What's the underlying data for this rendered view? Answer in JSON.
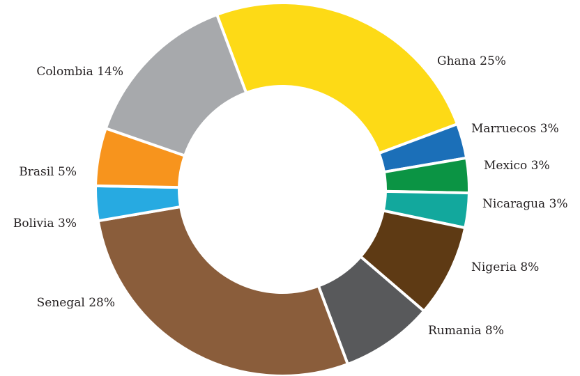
{
  "chart_data": {
    "type": "pie",
    "donut": true,
    "title": "",
    "slices": [
      {
        "name": "Ghana",
        "value": 25,
        "label": "Ghana 25%",
        "color": "#FDDA16"
      },
      {
        "name": "Marruecos",
        "value": 3,
        "label": "Marruecos 3%",
        "color": "#1B6FB8"
      },
      {
        "name": "Mexico",
        "value": 3,
        "label": "Mexico 3%",
        "color": "#0B9444"
      },
      {
        "name": "Nicaragua",
        "value": 3,
        "label": "Nicaragua 3%",
        "color": "#12A89D"
      },
      {
        "name": "Nigeria",
        "value": 8,
        "label": "Nigeria 8%",
        "color": "#5E3A14"
      },
      {
        "name": "Rumania",
        "value": 8,
        "label": "Rumania 8%",
        "color": "#58595B"
      },
      {
        "name": "Senegal",
        "value": 28,
        "label": "Senegal 28%",
        "color": "#8A5D3B"
      },
      {
        "name": "Bolivia",
        "value": 3,
        "label": "Bolivia 3%",
        "color": "#27AAE1"
      },
      {
        "name": "Brasil",
        "value": 5,
        "label": "Brasil 5%",
        "color": "#F7941D"
      },
      {
        "name": "Colombia",
        "value": 14,
        "label": "Colombia 14%",
        "color": "#A7A9AC"
      }
    ]
  }
}
